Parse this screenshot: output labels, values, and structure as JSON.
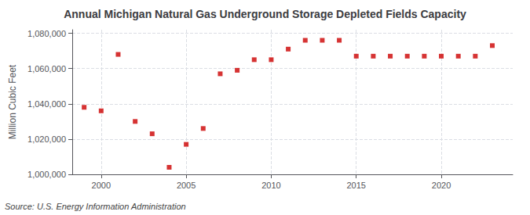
{
  "chart_data": {
    "type": "scatter",
    "title": "Annual Michigan Natural Gas Underground Storage Depleted Fields Capacity",
    "ylabel": "Million Cubic Feet",
    "annotation": "Source: U.S. Energy Information Administration",
    "color": "#cc0000",
    "marker": "square",
    "x": [
      1999,
      2000,
      2001,
      2002,
      2003,
      2004,
      2005,
      2006,
      2007,
      2008,
      2009,
      2010,
      2011,
      2012,
      2013,
      2014,
      2015,
      2016,
      2017,
      2018,
      2019,
      2020,
      2021,
      2022,
      2023
    ],
    "values": [
      1038000,
      1036000,
      1068000,
      1030000,
      1023000,
      1004000,
      1017000,
      1026000,
      1057000,
      1059000,
      1065000,
      1065000,
      1071000,
      1076000,
      1076000,
      1076000,
      1067000,
      1067000,
      1067000,
      1067000,
      1067000,
      1067000,
      1067000,
      1067000,
      1073000
    ],
    "xlim": [
      1998.3,
      2024.2
    ],
    "xticks": [
      2000,
      2005,
      2010,
      2015,
      2020
    ],
    "ylim": [
      1000000,
      1082000
    ],
    "yticks": [
      {
        "value": 1000000,
        "label": "1,000,000"
      },
      {
        "value": 1020000,
        "label": "1,020,000"
      },
      {
        "value": 1040000,
        "label": "1,040,000"
      },
      {
        "value": 1060000,
        "label": "1,060,000"
      },
      {
        "value": 1080000,
        "label": "1,080,000"
      }
    ],
    "grid": true
  }
}
